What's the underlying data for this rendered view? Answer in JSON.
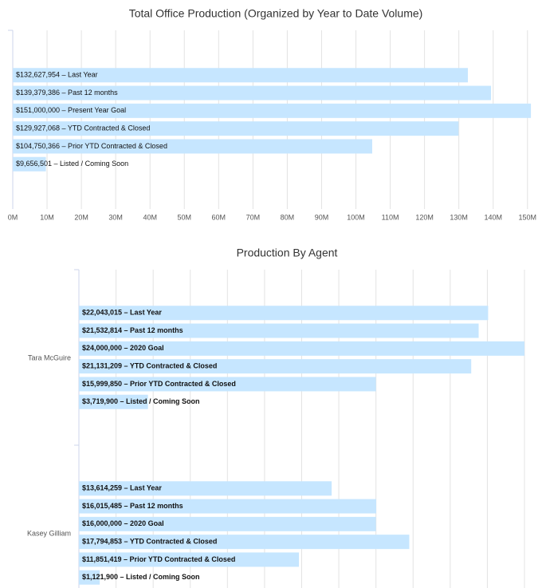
{
  "chart_data": [
    {
      "type": "hbar",
      "title": "Total Office Production (Organized by Year to Date Volume)",
      "values": [
        132627954,
        139379386,
        151000000,
        129927068,
        104750366,
        9656501
      ],
      "value_labels": [
        "$132,627,954 – Last Year",
        "$139,379,386 – Past 12 months",
        "$151,000,000 – Present Year Goal",
        "$129,927,068 – YTD Contracted & Closed",
        "$104,750,366 – Prior YTD Contracted & Closed",
        "$9,656,501 – Listed / Coming Soon"
      ],
      "color": "#c6e6ff",
      "xlim": [
        0,
        154000000
      ],
      "xticks": [
        {
          "value": 0,
          "label": "0M"
        },
        {
          "value": 10000000,
          "label": "10M"
        },
        {
          "value": 20000000,
          "label": "20M"
        },
        {
          "value": 30000000,
          "label": "30M"
        },
        {
          "value": 40000000,
          "label": "40M"
        },
        {
          "value": 50000000,
          "label": "50M"
        },
        {
          "value": 60000000,
          "label": "60M"
        },
        {
          "value": 70000000,
          "label": "70M"
        },
        {
          "value": 80000000,
          "label": "80M"
        },
        {
          "value": 90000000,
          "label": "90M"
        },
        {
          "value": 100000000,
          "label": "100M"
        },
        {
          "value": 110000000,
          "label": "110M"
        },
        {
          "value": 120000000,
          "label": "120M"
        },
        {
          "value": 130000000,
          "label": "130M"
        },
        {
          "value": 140000000,
          "label": "140M"
        },
        {
          "value": 150000000,
          "label": "150M"
        }
      ],
      "grid": true
    },
    {
      "type": "grouped-hbar",
      "title": "Production By Agent",
      "categories": [
        "Tara McGuire",
        "Kasey Gilliam"
      ],
      "series": [
        {
          "color": "#c6e6ff",
          "values": [
            22043015,
            13614259
          ],
          "value_labels": [
            "$22,043,015 – Last Year",
            "$13,614,259 – Last Year"
          ]
        },
        {
          "color": "#c6e6ff",
          "values": [
            21532814,
            16015485
          ],
          "value_labels": [
            "$21,532,814 – Past 12 months",
            "$16,015,485 – Past 12 months"
          ]
        },
        {
          "color": "#c6e6ff",
          "values": [
            24000000,
            16000000
          ],
          "value_labels": [
            "$24,000,000 – 2020 Goal",
            "$16,000,000 – 2020 Goal"
          ]
        },
        {
          "color": "#c6e6ff",
          "values": [
            21131209,
            17794853
          ],
          "value_labels": [
            "$21,131,209 – YTD Contracted & Closed",
            "$17,794,853 – YTD Contracted & Closed"
          ]
        },
        {
          "color": "#c6e6ff",
          "values": [
            15999850,
            11851419
          ],
          "value_labels": [
            "$15,999,850 – Prior YTD Contracted & Closed",
            "$11,851,419 – Prior YTD Contracted & Closed"
          ]
        },
        {
          "color": "#c6e6ff",
          "values": [
            3719900,
            1121900
          ],
          "value_labels": [
            "$3,719,900 – Listed / Coming Soon",
            "$1,121,900 – Listed / Coming Soon"
          ]
        }
      ],
      "xlim": [
        0,
        24000000
      ],
      "xticks": [
        0,
        2000000,
        4000000,
        6000000,
        8000000,
        10000000,
        12000000,
        14000000,
        16000000,
        18000000,
        20000000,
        22000000,
        24000000
      ],
      "grid": true
    }
  ]
}
